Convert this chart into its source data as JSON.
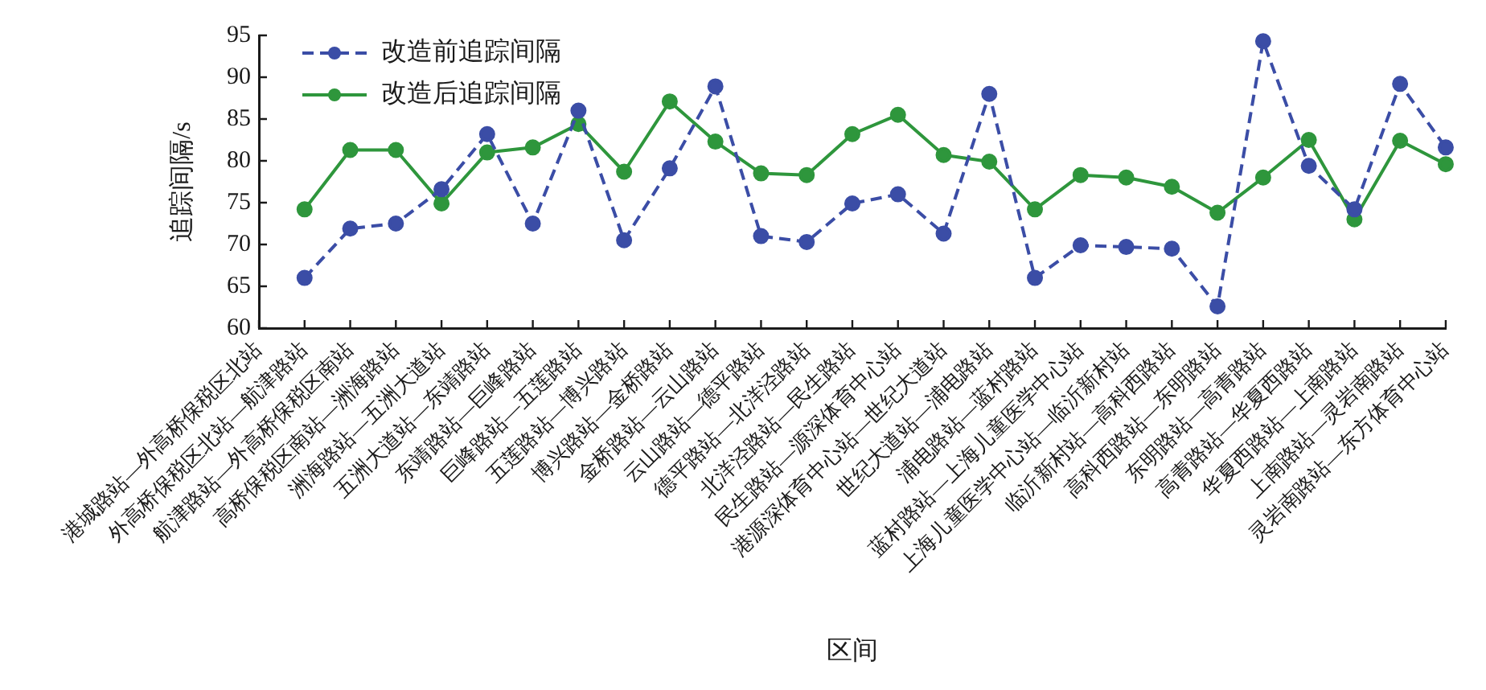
{
  "chart_data": {
    "type": "line",
    "xlabel": "区间",
    "ylabel": "追踪间隔/s",
    "categories": [
      "港城路站—外高桥保税区北站",
      "外高桥保税区北站—航津路站",
      "航津路站—外高桥保税区南站",
      "高桥保税区南站—洲海路站",
      "洲海路站—五洲大道站",
      "五洲大道站—东靖路站",
      "东靖路站—巨峰路站",
      "巨峰路站—五莲路站",
      "五莲路站—博兴路站",
      "博兴路站—金桥路站",
      "金桥路站—云山路站",
      "云山路站—德平路站",
      "德平路站—北洋泾路站",
      "北洋泾路站—民生路站",
      "民生路站—源深体育中心站",
      "港源深体育中心站—世纪大道站",
      "世纪大道站—浦电路站",
      "浦电路站—蓝村路站",
      "蓝村路站—上海儿童医学中心站",
      "上海儿童医学中心站—临沂新村站",
      "临沂新村站—高科西路站",
      "高科西路站—东明路站",
      "东明路站—高青路站",
      "高青路站—华夏西路站",
      "华夏西路站—上南路站",
      "上南路站—灵岩南路站",
      "灵岩南路站—东方体育中心站"
    ],
    "series": [
      {
        "name": "改造前追踪间隔",
        "color": "#3b4da6",
        "line_style": "dashed",
        "values": [
          null,
          66.0,
          71.9,
          72.5,
          76.6,
          83.2,
          72.5,
          86.0,
          70.5,
          79.1,
          88.9,
          71.0,
          70.3,
          74.9,
          76.0,
          71.3,
          88.0,
          66.0,
          69.9,
          69.7,
          69.5,
          62.6,
          94.3,
          79.4,
          74.2,
          89.2,
          81.6
        ]
      },
      {
        "name": "改造后追踪间隔",
        "color": "#2e963c",
        "line_style": "solid",
        "values": [
          null,
          74.2,
          81.3,
          81.3,
          74.9,
          81.0,
          81.6,
          84.4,
          78.7,
          87.1,
          82.3,
          78.5,
          78.3,
          83.2,
          85.5,
          80.7,
          79.9,
          74.2,
          78.3,
          78.0,
          76.9,
          73.8,
          78.0,
          82.5,
          73.0,
          82.4,
          79.6
        ]
      }
    ],
    "ylim": [
      60,
      95
    ],
    "yticks": [
      60,
      65,
      70,
      75,
      80,
      85,
      90,
      95
    ],
    "grid": false,
    "legend": "top left",
    "marker": "circle"
  }
}
